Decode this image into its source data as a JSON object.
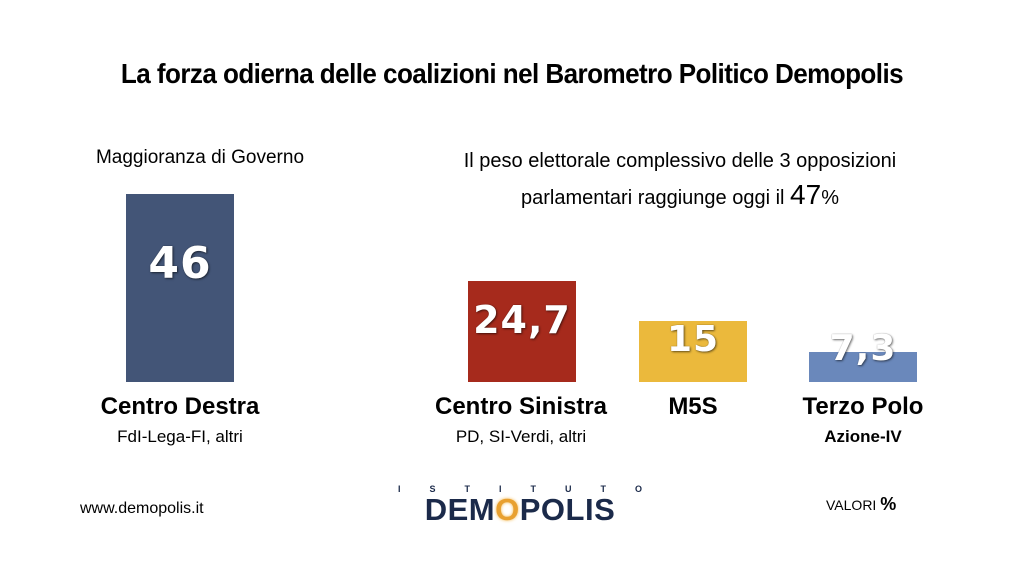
{
  "title": "La forza odierna delle coalizioni nel Barometro Politico Demopolis",
  "left_caption": "Maggioranza di Governo",
  "right_caption": {
    "line1": "Il peso elettorale complessivo delle 3 opposizioni",
    "line2_prefix": "parlamentari raggiunge oggi il ",
    "value": "47",
    "unit": "%"
  },
  "footer": {
    "website": "www.demopolis.it",
    "logo_top": [
      "I",
      "S",
      "T",
      "I",
      "T",
      "U",
      "T",
      "O"
    ],
    "logo_main_before": "DEM",
    "logo_main_o": "O",
    "logo_main_after": "POLIS",
    "valori_label": "VALORI",
    "valori_unit": "%"
  },
  "chart_data": {
    "type": "bar",
    "categories": [
      "Centro Destra",
      "Centro Sinistra",
      "M5S",
      "Terzo Polo"
    ],
    "subtitles": [
      "FdI-Lega-FI, altri",
      "PD, SI-Verdi, altri",
      "",
      "Azione-IV"
    ],
    "values": [
      46,
      24.7,
      15,
      7.3
    ],
    "value_labels": [
      "46",
      "24,7",
      "15",
      "7,3"
    ],
    "colors": [
      "#435577",
      "#a62a1c",
      "#ebb93c",
      "#6a88bb"
    ],
    "ylim": [
      0,
      46
    ]
  }
}
